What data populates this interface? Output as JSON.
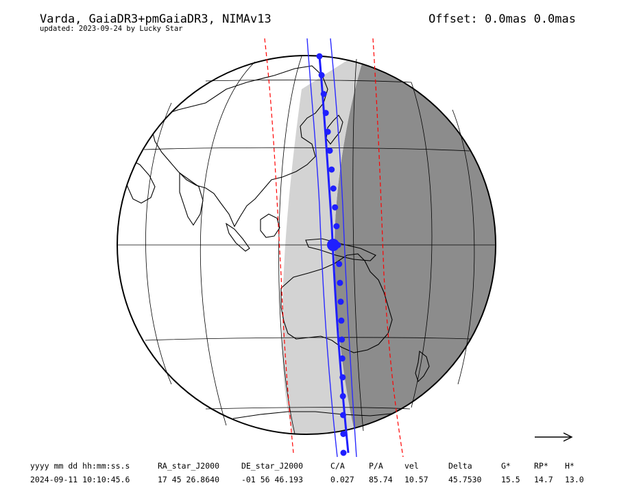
{
  "header": {
    "title": "Varda, GaiaDR3+pmGaiaDR3, NIMAv13",
    "subtitle": "updated: 2023-09-24 by Lucky Star",
    "offset": "Offset: 0.0mas 0.0mas"
  },
  "map": {
    "projection": "orthographic",
    "colors": {
      "globe_outline": "#000000",
      "night_side": "#8c8c8c",
      "twilight_band": "#d3d3d3",
      "land_outline": "#000000",
      "shadow_path": "#1f1fff",
      "path_limits": "#2a2aff",
      "error_limits": "#ff0000"
    },
    "path_points_count": 22,
    "direction_arrow": "right-arrow"
  },
  "table": {
    "headers": [
      "yyyy mm dd hh:mm:ss.s",
      "RA_star_J2000",
      "DE_star_J2000",
      "C/A",
      "P/A",
      "vel",
      "Delta",
      "G*",
      "RP*",
      "H*"
    ],
    "values": [
      "2024-09-11 10:10:45.6",
      "17 45 26.8640",
      "-01 56 46.193",
      "0.027",
      "85.74",
      "10.57",
      "45.7530",
      "15.5",
      "14.7",
      "13.0"
    ]
  }
}
